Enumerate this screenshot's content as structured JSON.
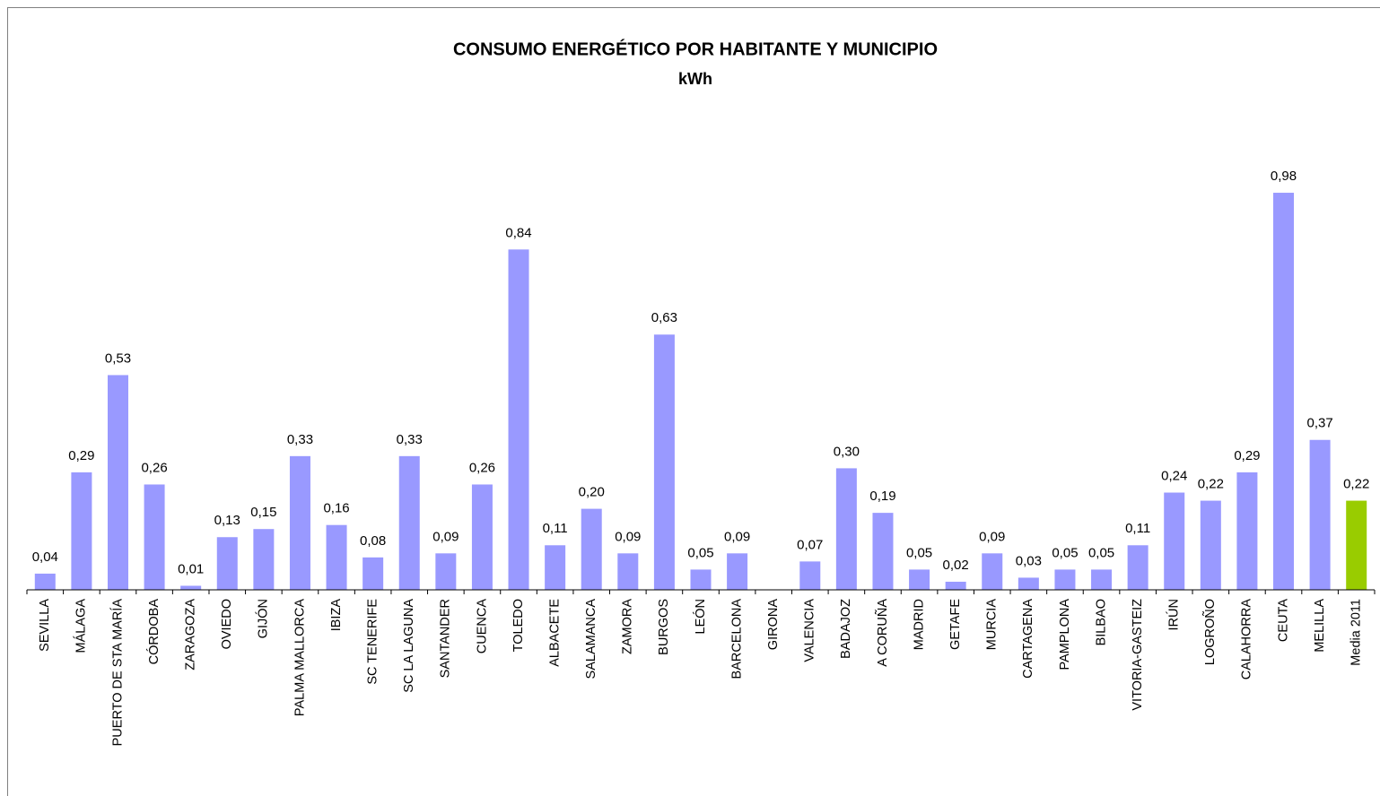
{
  "chart_data": {
    "type": "bar",
    "title": "CONSUMO ENERGÉTICO POR HABITANTE Y MUNICIPIO",
    "subtitle": "kWh",
    "categories": [
      "SEVILLA",
      "MÁLAGA",
      "PUERTO DE STA MARÍA",
      "CÓRDOBA",
      "ZARAGOZA",
      "OVIEDO",
      "GIJÓN",
      "PALMA MALLORCA",
      "IBIZA",
      "SC TENERIFE",
      "SC LA LAGUNA",
      "SANTANDER",
      "CUENCA",
      "TOLEDO",
      "ALBACETE",
      "SALAMANCA",
      "ZAMORA",
      "BURGOS",
      "LEÓN",
      "BARCELONA",
      "GIRONA",
      "VALENCIA",
      "BADAJOZ",
      "A CORUÑA",
      "MADRID",
      "GETAFE",
      "MURCIA",
      "CARTAGENA",
      "PAMPLONA",
      "BILBAO",
      "VITORIA-GASTEIZ",
      "IRÚN",
      "LOGROÑO",
      "CALAHORRA",
      "CEUTA",
      "MELILLA",
      "Media 2011"
    ],
    "values": [
      0.04,
      0.29,
      0.53,
      0.26,
      0.01,
      0.13,
      0.15,
      0.33,
      0.16,
      0.08,
      0.33,
      0.09,
      0.26,
      0.84,
      0.11,
      0.2,
      0.09,
      0.63,
      0.05,
      0.09,
      null,
      0.07,
      0.3,
      0.19,
      0.05,
      0.02,
      0.09,
      0.03,
      0.05,
      0.05,
      0.11,
      0.24,
      0.22,
      0.29,
      0.98,
      0.37,
      0.22
    ],
    "value_labels": [
      "0,04",
      "0,29",
      "0,53",
      "0,26",
      "0,01",
      "0,13",
      "0,15",
      "0,33",
      "0,16",
      "0,08",
      "0,33",
      "0,09",
      "0,26",
      "0,84",
      "0,11",
      "0,20",
      "0,09",
      "0,63",
      "0,05",
      "0,09",
      null,
      "0,07",
      "0,30",
      "0,19",
      "0,05",
      "0,02",
      "0,09",
      "0,03",
      "0,05",
      "0,05",
      "0,11",
      "0,24",
      "0,22",
      "0,29",
      "0,98",
      "0,37",
      "0,22"
    ],
    "colors": [
      "#9999ff",
      "#9999ff",
      "#9999ff",
      "#9999ff",
      "#9999ff",
      "#9999ff",
      "#9999ff",
      "#9999ff",
      "#9999ff",
      "#9999ff",
      "#9999ff",
      "#9999ff",
      "#9999ff",
      "#9999ff",
      "#9999ff",
      "#9999ff",
      "#9999ff",
      "#9999ff",
      "#9999ff",
      "#9999ff",
      "#9999ff",
      "#9999ff",
      "#9999ff",
      "#9999ff",
      "#9999ff",
      "#9999ff",
      "#9999ff",
      "#9999ff",
      "#9999ff",
      "#9999ff",
      "#9999ff",
      "#9999ff",
      "#9999ff",
      "#9999ff",
      "#9999ff",
      "#9999ff",
      "#99cc00"
    ],
    "ylim": [
      0,
      1
    ]
  }
}
